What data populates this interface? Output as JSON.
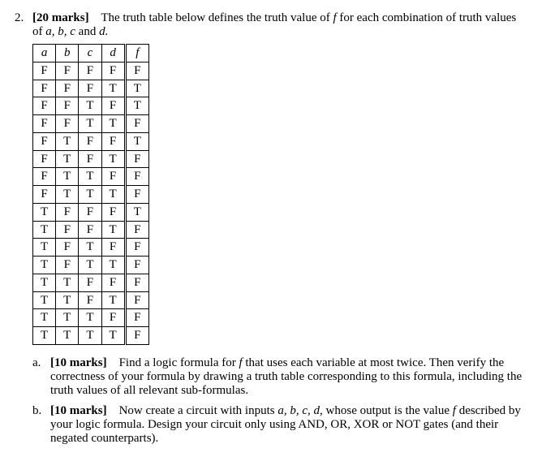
{
  "question": {
    "number": "2.",
    "marks_label": "[20 marks]",
    "intro_text": "The truth table below defines the truth value of",
    "intro_var_f": "f",
    "intro_text2": "for each combination of truth values of",
    "intro_vars": "a, b, c",
    "intro_and": "and",
    "intro_var_d": "d."
  },
  "table": {
    "headers": [
      "a",
      "b",
      "c",
      "d",
      "f"
    ],
    "groups": [
      [
        [
          "F",
          "F",
          "F",
          "F",
          "F"
        ],
        [
          "F",
          "F",
          "F",
          "T",
          "T"
        ],
        [
          "F",
          "F",
          "T",
          "F",
          "T"
        ],
        [
          "F",
          "F",
          "T",
          "T",
          "F"
        ]
      ],
      [
        [
          "F",
          "T",
          "F",
          "F",
          "T"
        ],
        [
          "F",
          "T",
          "F",
          "T",
          "F"
        ],
        [
          "F",
          "T",
          "T",
          "F",
          "F"
        ],
        [
          "F",
          "T",
          "T",
          "T",
          "F"
        ]
      ],
      [
        [
          "T",
          "F",
          "F",
          "F",
          "T"
        ],
        [
          "T",
          "F",
          "F",
          "T",
          "F"
        ],
        [
          "T",
          "F",
          "T",
          "F",
          "F"
        ],
        [
          "T",
          "F",
          "T",
          "T",
          "F"
        ]
      ],
      [
        [
          "T",
          "T",
          "F",
          "F",
          "F"
        ],
        [
          "T",
          "T",
          "F",
          "T",
          "F"
        ],
        [
          "T",
          "T",
          "T",
          "F",
          "F"
        ],
        [
          "T",
          "T",
          "T",
          "T",
          "F"
        ]
      ]
    ]
  },
  "parts": {
    "a": {
      "label": "a.",
      "marks": "[10 marks]",
      "text1": "Find a logic formula for",
      "var_f": "f",
      "text2": "that uses each variable at most twice. Then verify the correctness of your formula by drawing a truth table corresponding to this formula, including the truth values of all relevant sub-formulas."
    },
    "b": {
      "label": "b.",
      "marks": "[10 marks]",
      "text1": "Now create a circuit with inputs",
      "vars": "a, b, c, d,",
      "text2": "whose output is the value",
      "var_f": "f",
      "text3": "described by your logic formula. Design your circuit only using AND, OR, XOR or NOT gates (and their negated counterparts)."
    }
  }
}
